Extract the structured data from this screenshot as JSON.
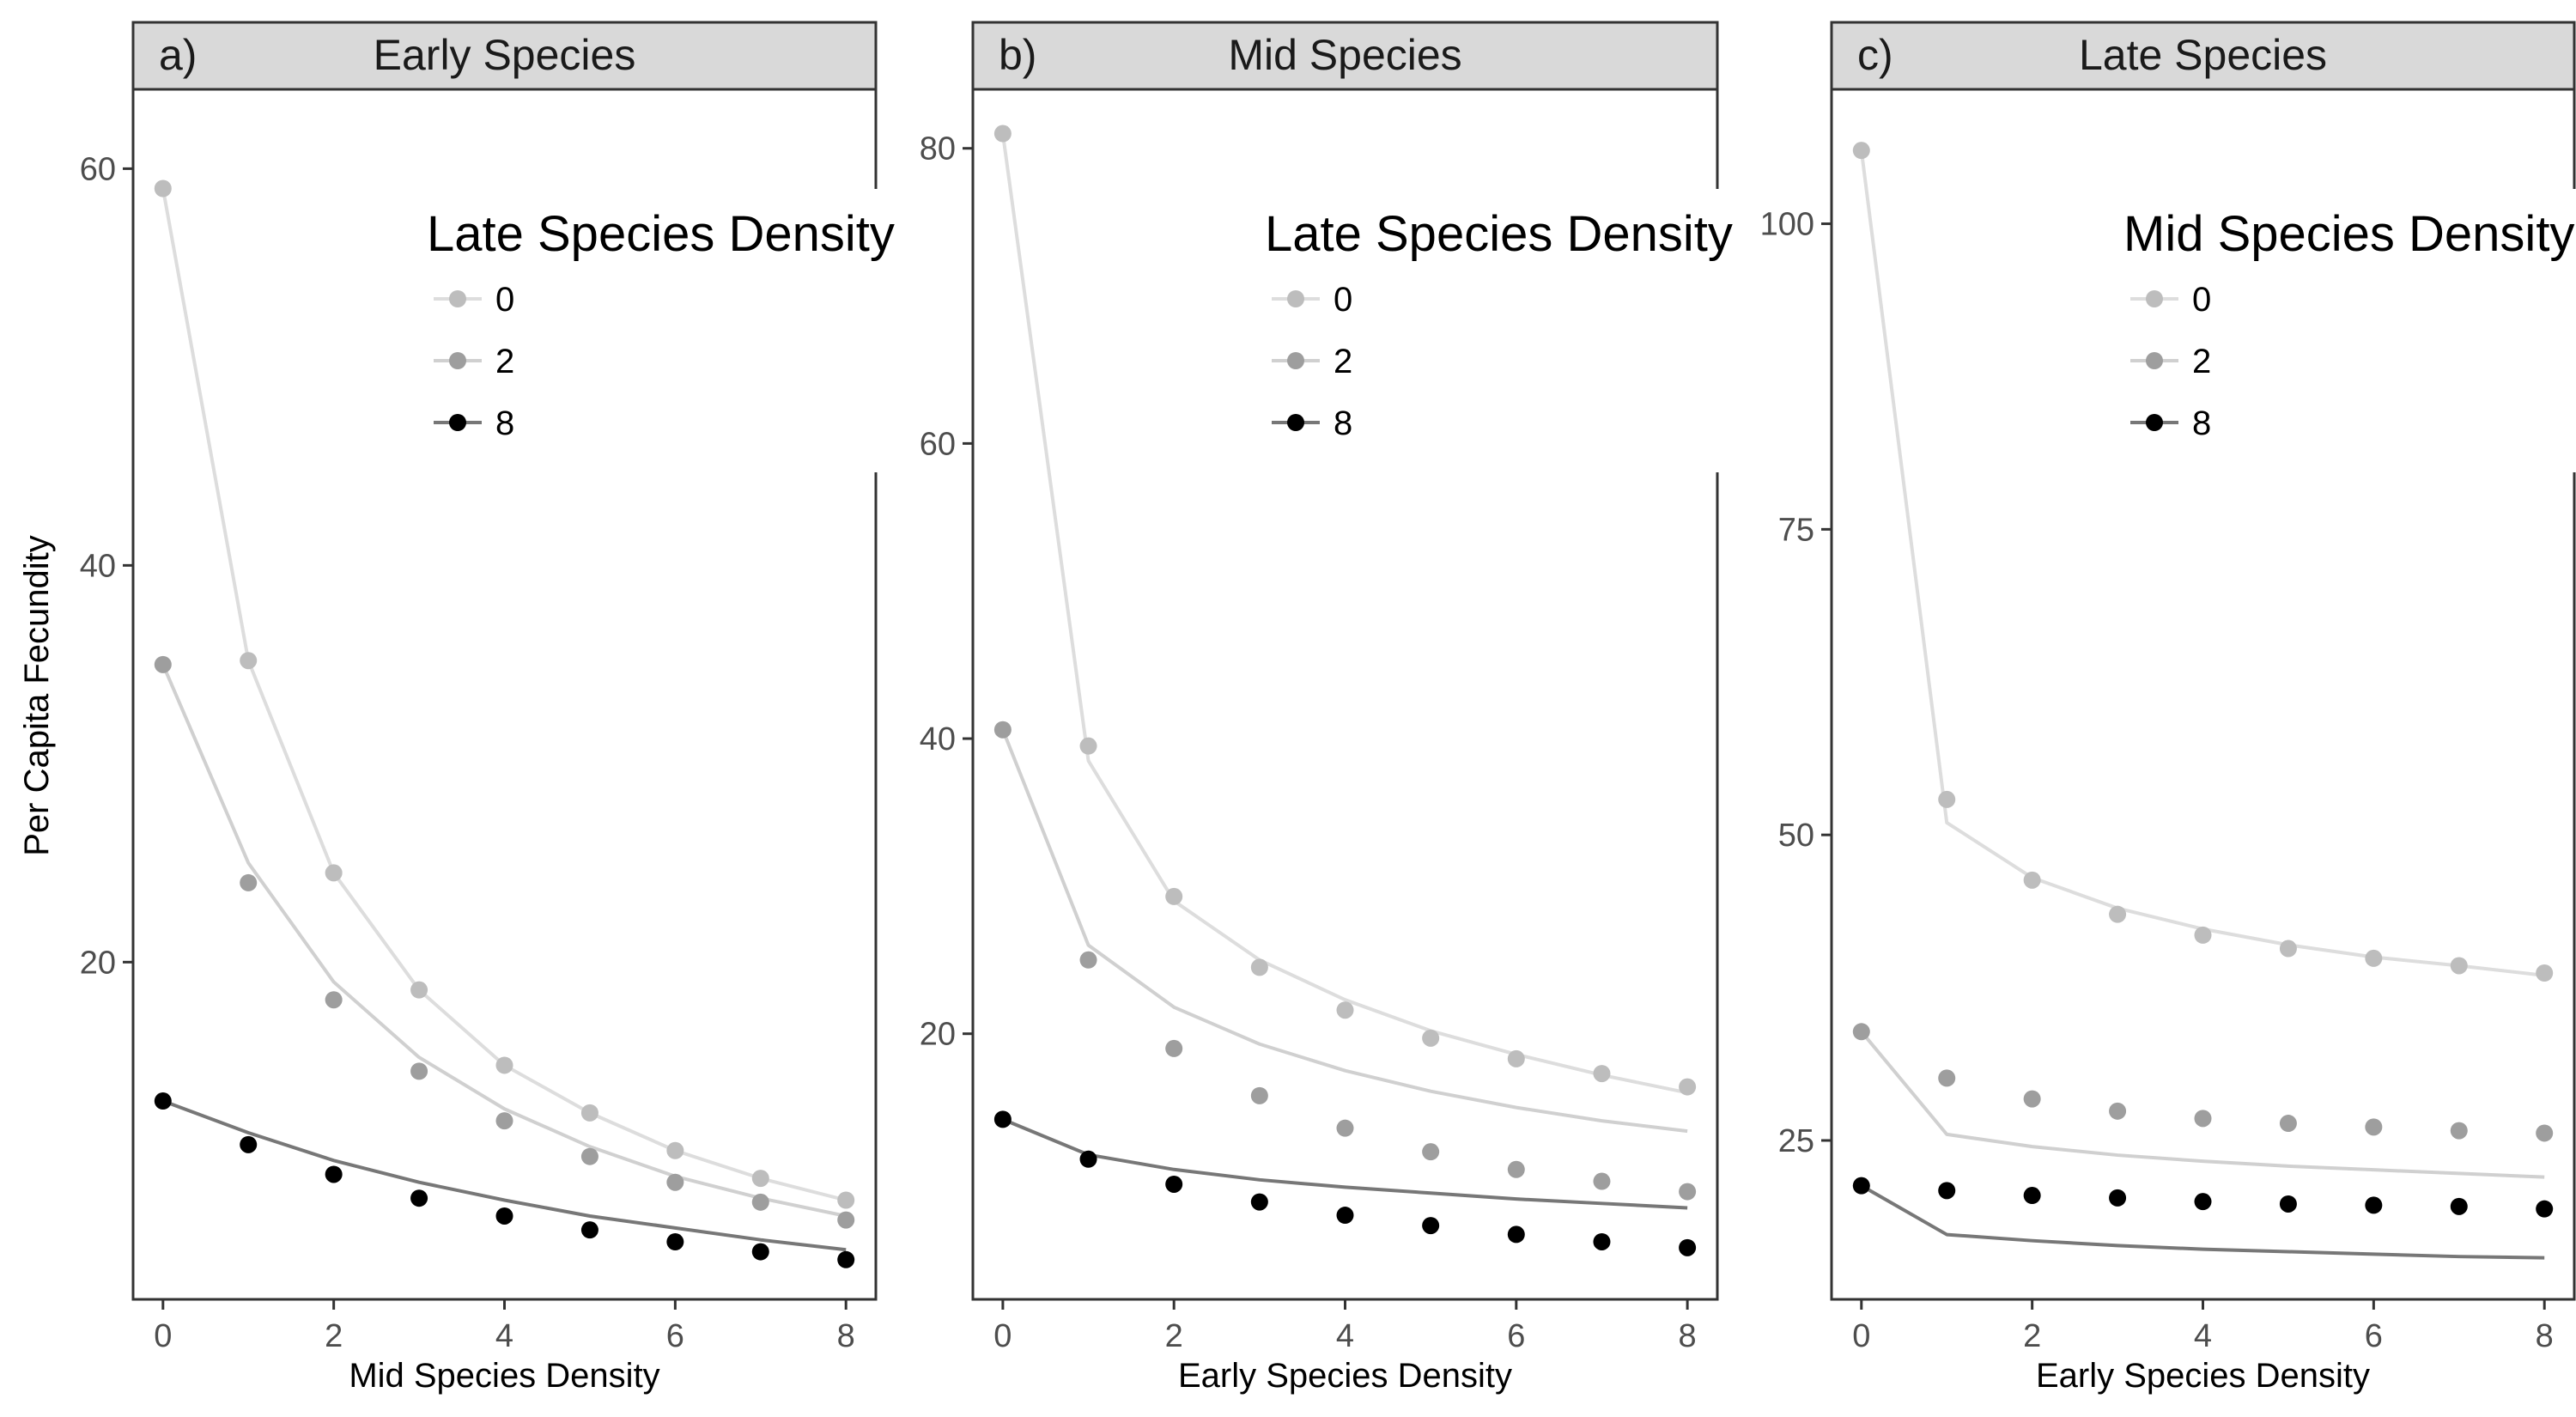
{
  "figure": {
    "ylabel": "Per Capita Fecundity"
  },
  "legend_values": [
    "0",
    "2",
    "8"
  ],
  "chart_data": [
    {
      "type": "line",
      "panel_tag": "a)",
      "title": "Early Species",
      "xlabel": "Mid Species Density",
      "ylabel": "Per Capita Fecundity",
      "legend_title": "Late Species Density",
      "legend_placement": "top-right",
      "xlim": [
        -0.35,
        8.35
      ],
      "ylim": [
        3,
        64
      ],
      "xticks": [
        0,
        2,
        4,
        6,
        8
      ],
      "yticks": [
        20,
        40,
        60
      ],
      "grid": false,
      "x": [
        0,
        1,
        2,
        3,
        4,
        5,
        6,
        7,
        8
      ],
      "series": [
        {
          "name": "0",
          "color": "#bdbdbd",
          "line_color": "#dddddd",
          "points": [
            59.0,
            35.2,
            24.5,
            18.6,
            14.8,
            12.4,
            10.5,
            9.1,
            8.0
          ],
          "fit": [
            59.0,
            35.2,
            24.5,
            18.6,
            14.8,
            12.4,
            10.5,
            9.1,
            8.0
          ]
        },
        {
          "name": "2",
          "color": "#9e9e9e",
          "line_color": "#d0d0d0",
          "points": [
            35.0,
            24.0,
            18.1,
            14.5,
            12.0,
            10.2,
            8.9,
            7.9,
            7.0
          ],
          "fit": [
            35.0,
            25.0,
            19.0,
            15.2,
            12.6,
            10.7,
            9.2,
            8.1,
            7.2
          ]
        },
        {
          "name": "8",
          "color": "#000000",
          "line_color": "#777777",
          "points": [
            13.0,
            10.8,
            9.3,
            8.1,
            7.2,
            6.5,
            5.9,
            5.4,
            5.0
          ],
          "fit": [
            13.0,
            11.4,
            10.0,
            8.9,
            8.0,
            7.2,
            6.6,
            6.0,
            5.5
          ]
        }
      ]
    },
    {
      "type": "line",
      "panel_tag": "b)",
      "title": "Mid  Species",
      "xlabel": "Early Species Density",
      "legend_title": "Late Species Density",
      "legend_placement": "top-right",
      "xlim": [
        -0.35,
        8.35
      ],
      "ylim": [
        2,
        84
      ],
      "xticks": [
        0,
        2,
        4,
        6,
        8
      ],
      "yticks": [
        20,
        40,
        60,
        80
      ],
      "grid": false,
      "x": [
        0,
        1,
        2,
        3,
        4,
        5,
        6,
        7,
        8
      ],
      "series": [
        {
          "name": "0",
          "color": "#bdbdbd",
          "line_color": "#dddddd",
          "points": [
            81.0,
            39.5,
            29.3,
            24.5,
            21.6,
            19.7,
            18.3,
            17.3,
            16.4
          ],
          "fit": [
            81.0,
            38.5,
            29.0,
            25.0,
            22.3,
            20.2,
            18.6,
            17.2,
            16.0
          ]
        },
        {
          "name": "2",
          "color": "#9e9e9e",
          "line_color": "#d0d0d0",
          "points": [
            40.6,
            25.0,
            19.0,
            15.8,
            13.6,
            12.0,
            10.8,
            10.0,
            9.3
          ],
          "fit": [
            40.6,
            26.0,
            21.8,
            19.3,
            17.5,
            16.1,
            15.0,
            14.1,
            13.4
          ]
        },
        {
          "name": "8",
          "color": "#000000",
          "line_color": "#777777",
          "points": [
            14.2,
            11.5,
            9.8,
            8.6,
            7.7,
            7.0,
            6.4,
            5.9,
            5.5
          ],
          "fit": [
            14.2,
            11.8,
            10.8,
            10.1,
            9.6,
            9.2,
            8.8,
            8.5,
            8.2
          ]
        }
      ]
    },
    {
      "type": "line",
      "panel_tag": "c)",
      "title": "Late  Species",
      "xlabel": "Early Species Density",
      "legend_title": "Mid Species Density",
      "legend_placement": "top-right",
      "xlim": [
        -0.35,
        8.35
      ],
      "ylim": [
        12,
        111
      ],
      "xticks": [
        0,
        2,
        4,
        6,
        8
      ],
      "yticks": [
        25,
        50,
        75,
        100
      ],
      "grid": false,
      "x": [
        0,
        1,
        2,
        3,
        4,
        5,
        6,
        7,
        8
      ],
      "series": [
        {
          "name": "0",
          "color": "#bdbdbd",
          "line_color": "#dddddd",
          "points": [
            106.0,
            52.9,
            46.3,
            43.5,
            41.8,
            40.7,
            39.9,
            39.3,
            38.7
          ],
          "fit": [
            106.0,
            51.0,
            46.5,
            44.0,
            42.3,
            41.0,
            40.0,
            39.3,
            38.5
          ]
        },
        {
          "name": "2",
          "color": "#9e9e9e",
          "line_color": "#d0d0d0",
          "points": [
            33.9,
            30.1,
            28.4,
            27.4,
            26.8,
            26.4,
            26.1,
            25.8,
            25.6
          ],
          "fit": [
            33.9,
            25.5,
            24.5,
            23.8,
            23.3,
            22.9,
            22.6,
            22.3,
            22.0
          ]
        },
        {
          "name": "8",
          "color": "#000000",
          "line_color": "#777777",
          "points": [
            21.3,
            20.9,
            20.5,
            20.3,
            20.0,
            19.8,
            19.7,
            19.6,
            19.4
          ],
          "fit": [
            21.3,
            17.3,
            16.8,
            16.4,
            16.1,
            15.9,
            15.7,
            15.5,
            15.4
          ]
        }
      ]
    }
  ]
}
